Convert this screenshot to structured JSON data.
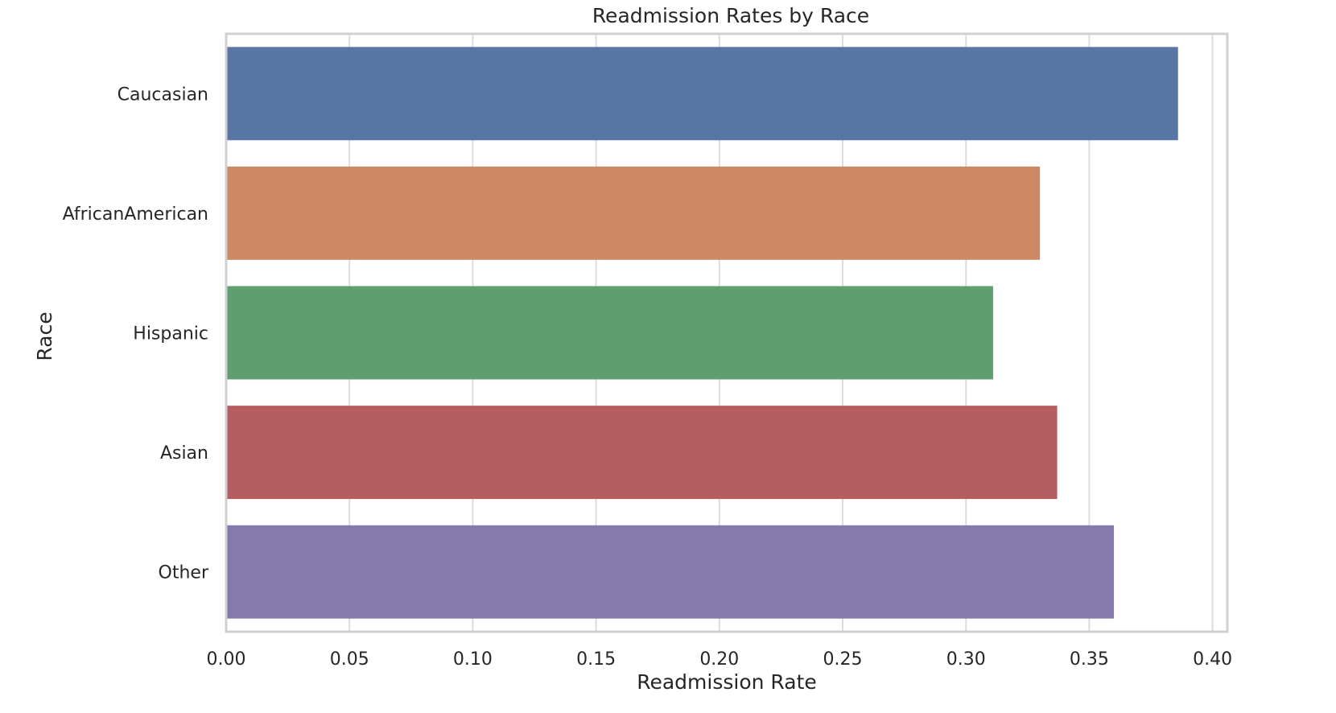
{
  "chart_data": {
    "type": "bar",
    "orientation": "horizontal",
    "title": "Readmission Rates by Race",
    "xlabel": "Readmission Rate",
    "ylabel": "Race",
    "categories": [
      "Caucasian",
      "AfricanAmerican",
      "Hispanic",
      "Asian",
      "Other"
    ],
    "values": [
      0.386,
      0.33,
      0.311,
      0.337,
      0.36
    ],
    "colors": [
      "#5875a4",
      "#cc8963",
      "#5f9e6e",
      "#b55d60",
      "#857aab"
    ],
    "xlim": [
      0,
      0.406
    ],
    "xticks": [
      0.0,
      0.05,
      0.1,
      0.15,
      0.2,
      0.25,
      0.3,
      0.35,
      0.4
    ],
    "xtick_labels": [
      "0.00",
      "0.05",
      "0.10",
      "0.15",
      "0.20",
      "0.25",
      "0.30",
      "0.35",
      "0.40"
    ],
    "grid": "vertical",
    "legend": "none"
  }
}
